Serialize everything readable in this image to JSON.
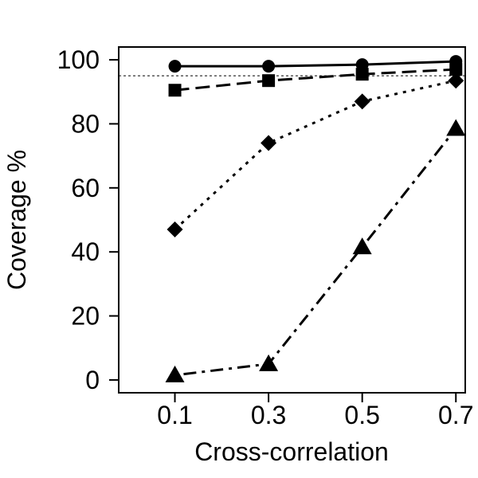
{
  "chart_data": {
    "type": "line",
    "title": "",
    "xlabel": "Cross-correlation",
    "ylabel": "Coverage %",
    "categories": [
      "0.1",
      "0.3",
      "0.5",
      "0.7"
    ],
    "x": [
      0.1,
      0.3,
      0.5,
      0.7
    ],
    "xlim": [
      -0.02,
      0.72
    ],
    "ylim": [
      -4,
      104
    ],
    "yticks": [
      0,
      20,
      40,
      60,
      80,
      100
    ],
    "ytick_labels": [
      "0",
      "20",
      "40",
      "60",
      "80",
      "100"
    ],
    "reference_line": {
      "y": 95,
      "style": "dashed"
    },
    "grid": false,
    "series": [
      {
        "marker": "circle",
        "line_style": "solid",
        "values": [
          98,
          98,
          98.5,
          99.5
        ]
      },
      {
        "marker": "square",
        "line_style": "longdash",
        "values": [
          90.5,
          93.5,
          95.5,
          97
        ]
      },
      {
        "marker": "diamond",
        "line_style": "dotted",
        "values": [
          47,
          74,
          87,
          93.5
        ]
      },
      {
        "marker": "triangle",
        "line_style": "dashdot",
        "values": [
          1.5,
          5,
          41.5,
          78.5
        ]
      }
    ]
  }
}
